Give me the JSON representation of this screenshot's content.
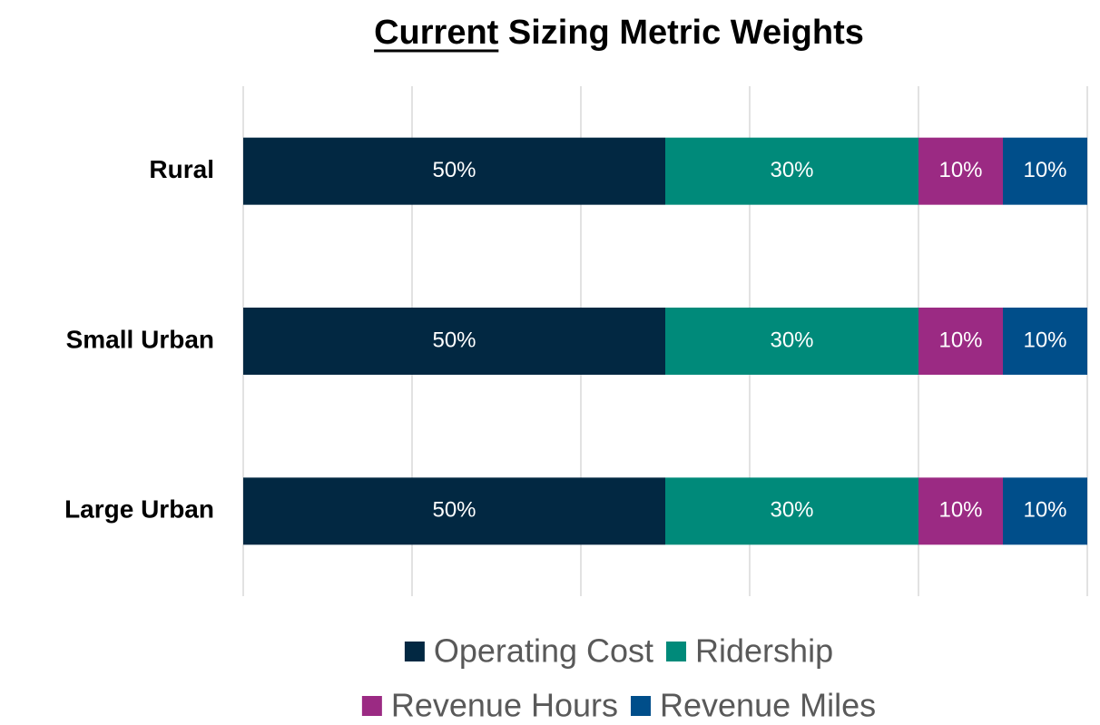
{
  "chart_data": {
    "type": "stacked-barh",
    "title": "Current Sizing Metric Weights",
    "categories": [
      "Rural",
      "Small Urban",
      "Large Urban"
    ],
    "series": [
      {
        "name": "Operating Cost",
        "color": "#022842",
        "values": [
          50,
          50,
          50
        ],
        "value_labels": [
          "50%",
          "50%",
          "50%"
        ]
      },
      {
        "name": "Ridership",
        "color": "#008a7a",
        "values": [
          30,
          30,
          30
        ],
        "value_labels": [
          "30%",
          "30%",
          "30%"
        ]
      },
      {
        "name": "Revenue Hours",
        "color": "#9b2a83",
        "values": [
          10,
          10,
          10
        ],
        "value_labels": [
          "10%",
          "10%",
          "10%"
        ]
      },
      {
        "name": "Revenue Miles",
        "color": "#004e8a",
        "values": [
          10,
          10,
          10
        ],
        "value_labels": [
          "10%",
          "10%",
          "10%"
        ]
      }
    ],
    "xlim": [
      0,
      100
    ],
    "xticks": [
      0,
      20,
      40,
      60,
      80,
      100
    ],
    "grid": true,
    "legend": "bottom"
  }
}
